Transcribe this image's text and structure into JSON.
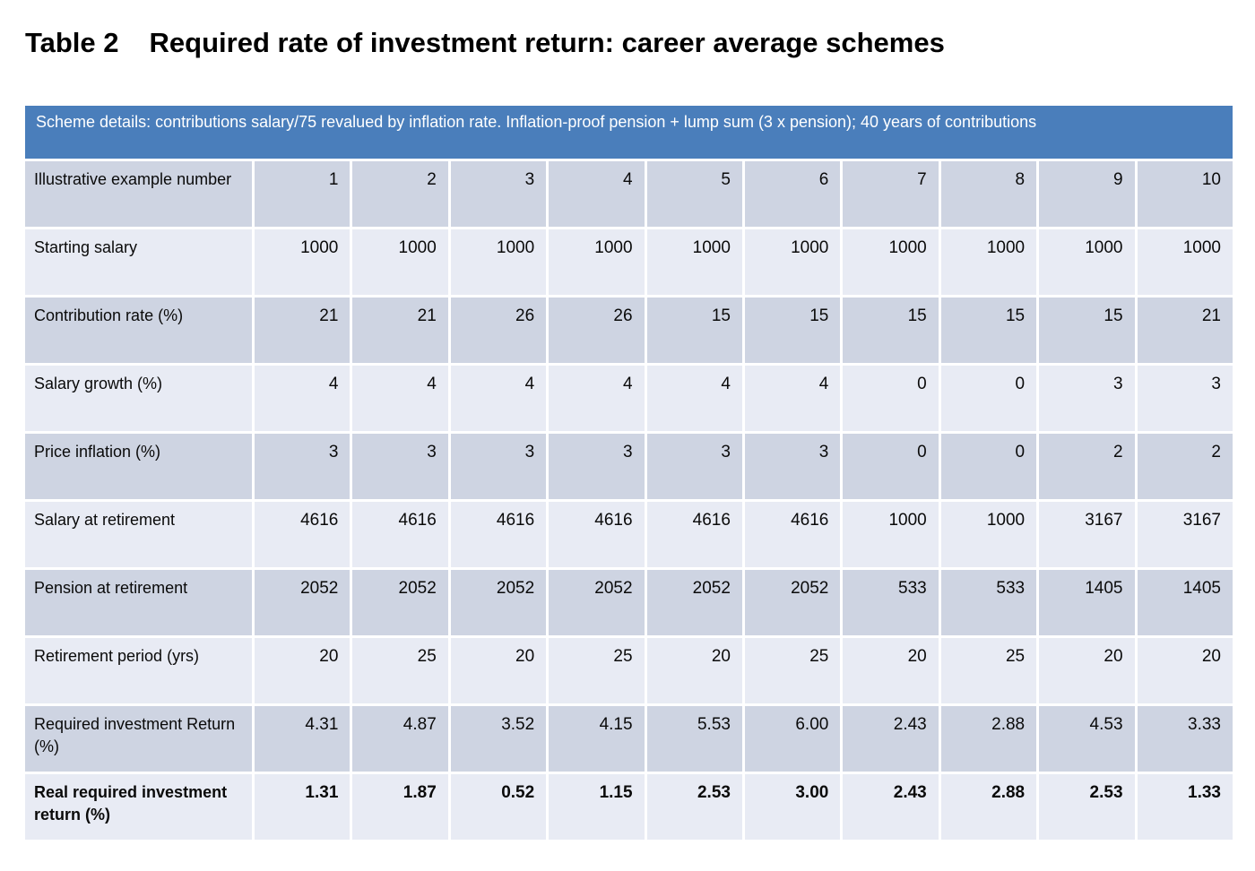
{
  "title": {
    "prefix": "Table 2",
    "text": "Required rate of investment return: career average schemes"
  },
  "table": {
    "scheme_details": "Scheme details: contributions salary/75 revalued by inflation rate. Inflation-proof pension + lump sum (3 x pension); 40 years of contributions",
    "rows": [
      {
        "label": "Illustrative example number",
        "values": [
          "1",
          "2",
          "3",
          "4",
          "5",
          "6",
          "7",
          "8",
          "9",
          "10"
        ],
        "bold": false
      },
      {
        "label": "Starting salary",
        "values": [
          "1000",
          "1000",
          "1000",
          "1000",
          "1000",
          "1000",
          "1000",
          "1000",
          "1000",
          "1000"
        ],
        "bold": false
      },
      {
        "label": "Contribution rate (%)",
        "values": [
          "21",
          "21",
          "26",
          "26",
          "15",
          "15",
          "15",
          "15",
          "15",
          "21"
        ],
        "bold": false
      },
      {
        "label": "Salary growth (%)",
        "values": [
          "4",
          "4",
          "4",
          "4",
          "4",
          "4",
          "0",
          "0",
          "3",
          "3"
        ],
        "bold": false
      },
      {
        "label": "Price inflation (%)",
        "values": [
          "3",
          "3",
          "3",
          "3",
          "3",
          "3",
          "0",
          "0",
          "2",
          "2"
        ],
        "bold": false
      },
      {
        "label": "Salary at retirement",
        "values": [
          "4616",
          "4616",
          "4616",
          "4616",
          "4616",
          "4616",
          "1000",
          "1000",
          "3167",
          "3167"
        ],
        "bold": false
      },
      {
        "label": "Pension at retirement",
        "values": [
          "2052",
          "2052",
          "2052",
          "2052",
          "2052",
          "2052",
          "533",
          "533",
          "1405",
          "1405"
        ],
        "bold": false
      },
      {
        "label": "Retirement period (yrs)",
        "values": [
          "20",
          "25",
          "20",
          "25",
          "20",
          "25",
          "20",
          "25",
          "20",
          "20"
        ],
        "bold": false
      },
      {
        "label": "Required investment Return (%)",
        "values": [
          "4.31",
          "4.87",
          "3.52",
          "4.15",
          "5.53",
          "6.00",
          "2.43",
          "2.88",
          "4.53",
          "3.33"
        ],
        "bold": false
      },
      {
        "label": "Real required investment return (%)",
        "values": [
          "1.31",
          "1.87",
          "0.52",
          "1.15",
          "2.53",
          "3.00",
          "2.43",
          "2.88",
          "2.53",
          "1.33"
        ],
        "bold": true
      }
    ]
  },
  "colors": {
    "header_blue": "#4a7ebb",
    "band_dark": "#ced4e2",
    "band_light": "#e8ebf4",
    "text": "#0a0a0a",
    "background": "#ffffff"
  }
}
